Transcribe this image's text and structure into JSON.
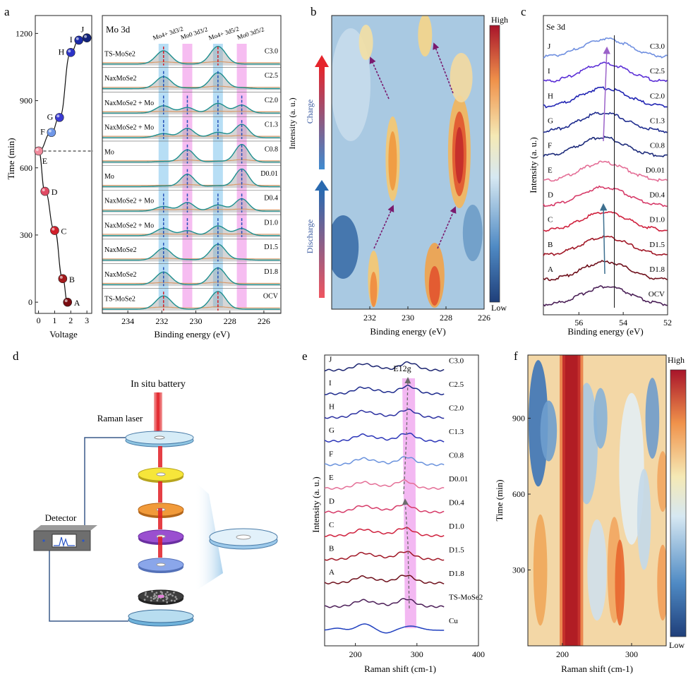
{
  "figure": {
    "panel_letters": [
      "a",
      "b",
      "c",
      "d",
      "e",
      "f"
    ]
  },
  "colors": {
    "curve_points": [
      "#7a0c10",
      "#a31a1c",
      "#d11f2a",
      "#e04a63",
      "#f08a9c",
      "#6f97e8",
      "#3a3ad1",
      "#2b33c7",
      "#1a2aa8",
      "#12237a"
    ],
    "xps_fill": "#a3a3a3",
    "xps_fit": "#1d8f8f",
    "xps_envelope": "#d99a6a",
    "mo4_band": "#9fd3f2",
    "mo0_band": "#f3a7ec",
    "heat_high": "#b2182b",
    "heat_low": "#2c5aa0"
  },
  "chart_data": [
    {
      "id": "a-voltage",
      "type": "line",
      "title": "",
      "xlabel": "Voltage",
      "ylabel": "Time (min)",
      "xlim": [
        -0.2,
        3.3
      ],
      "ylim": [
        -50,
        1280
      ],
      "xticks": [
        0,
        1,
        2,
        3
      ],
      "yticks": [
        0,
        300,
        600,
        900,
        1200
      ],
      "points": [
        {
          "label": "A",
          "v": 1.8,
          "t": 0
        },
        {
          "label": "B",
          "v": 1.5,
          "t": 105
        },
        {
          "label": "C",
          "v": 1.0,
          "t": 320
        },
        {
          "label": "D",
          "v": 0.4,
          "t": 495
        },
        {
          "label": "E",
          "v": 0.01,
          "t": 675
        },
        {
          "label": "F",
          "v": 0.8,
          "t": 758
        },
        {
          "label": "G",
          "v": 1.3,
          "t": 825
        },
        {
          "label": "H",
          "v": 2.0,
          "t": 1115
        },
        {
          "label": "I",
          "v": 2.5,
          "t": 1170
        },
        {
          "label": "J",
          "v": 3.0,
          "t": 1180
        }
      ],
      "dashed_reference_t": 675
    },
    {
      "id": "a-xps",
      "type": "line",
      "title": "Mo 3d",
      "xlabel": "Binding energy (eV)",
      "xlim": [
        235.5,
        225
      ],
      "xticks": [
        234,
        232,
        230,
        228,
        226
      ],
      "header_labels": [
        "Mo4+ 3d3/2",
        "Mo0 3d3/2",
        "Mo4+ 3d5/2",
        "Mo0 3d5/2"
      ],
      "peaks": {
        "mo4_a": 231.9,
        "mo0_a": 230.5,
        "mo4_b": 228.7,
        "mo0_b": 227.3
      },
      "stacks": [
        {
          "left": "TS-MoSe2",
          "right": "C3.0",
          "mo4": 1.0,
          "mo0": 0.0
        },
        {
          "left": "NaxMoSe2",
          "right": "C2.5",
          "mo4": 0.9,
          "mo0": 0.05
        },
        {
          "left": "NaxMoSe2 + Mo",
          "right": "C2.0",
          "mo4": 0.55,
          "mo0": 0.45
        },
        {
          "left": "NaxMoSe2 + Mo",
          "right": "C1.3",
          "mo4": 0.3,
          "mo0": 0.75
        },
        {
          "left": "Mo",
          "right": "C0.8",
          "mo4": 0.05,
          "mo0": 1.0
        },
        {
          "left": "Mo",
          "right": "D0.01",
          "mo4": 0.05,
          "mo0": 1.0
        },
        {
          "left": "NaxMoSe2 + Mo",
          "right": "D0.4",
          "mo4": 0.35,
          "mo0": 0.7
        },
        {
          "left": "NaxMoSe2 + Mo",
          "right": "D1.0",
          "mo4": 0.55,
          "mo0": 0.4
        },
        {
          "left": "NaxMoSe2",
          "right": "D1.5",
          "mo4": 0.9,
          "mo0": 0.05
        },
        {
          "left": "NaxMoSe2",
          "right": "D1.8",
          "mo4": 0.95,
          "mo0": 0.0
        },
        {
          "left": "TS-MoSe2",
          "right": "OCV",
          "mo4": 1.0,
          "mo0": 0.0
        }
      ]
    },
    {
      "id": "b-xps-map",
      "type": "heatmap",
      "xlabel": "Binding energy (eV)",
      "ylabel": "Intensity (a. u.)",
      "xlim": [
        234,
        226
      ],
      "xticks": [
        232,
        230,
        228,
        226
      ],
      "colorbar": {
        "high": "High",
        "low": "Low"
      },
      "arrow_labels": {
        "charge": "Charge",
        "discharge": "Discharge"
      }
    },
    {
      "id": "c-se3d",
      "type": "line",
      "title": "Se 3d",
      "xlabel": "Binding energy (eV)",
      "ylabel": "Intensity (a. u.)",
      "xlim": [
        57.6,
        52
      ],
      "xticks": [
        56,
        54,
        52
      ],
      "vertical_line_ev": 54.4,
      "series": [
        {
          "name": "OCV",
          "label": "",
          "color": "#4a1f56"
        },
        {
          "name": "D1.8",
          "label": "A",
          "color": "#6e0f1b"
        },
        {
          "name": "D1.5",
          "label": "B",
          "color": "#a01625"
        },
        {
          "name": "D1.0",
          "label": "C",
          "color": "#cf1f3c"
        },
        {
          "name": "D0.4",
          "label": "D",
          "color": "#d63a68"
        },
        {
          "name": "D0.01",
          "label": "E",
          "color": "#e46f97"
        },
        {
          "name": "C0.8",
          "label": "F",
          "color": "#1c2a7a"
        },
        {
          "name": "C1.3",
          "label": "G",
          "color": "#1e2b8e"
        },
        {
          "name": "C2.0",
          "label": "H",
          "color": "#2024b3"
        },
        {
          "name": "C2.5",
          "label": "I",
          "color": "#5b2fd6"
        },
        {
          "name": "C3.0",
          "label": "J",
          "color": "#6f8fe0"
        }
      ]
    },
    {
      "id": "e-raman",
      "type": "line",
      "title": "E12g",
      "xlabel": "Raman shift (cm-1)",
      "ylabel": "Intensity (a. u.)",
      "xlim": [
        150,
        400
      ],
      "xticks": [
        200,
        300,
        400
      ],
      "series": [
        {
          "name": "Cu",
          "label": "",
          "color": "#1f3fbf"
        },
        {
          "name": "TS-MoSe2",
          "label": "",
          "color": "#4b1d57"
        },
        {
          "name": "D1.8",
          "label": "A",
          "color": "#6e0f1b"
        },
        {
          "name": "D1.5",
          "label": "B",
          "color": "#a01625"
        },
        {
          "name": "D1.0",
          "label": "C",
          "color": "#cf1f3c"
        },
        {
          "name": "D0.4",
          "label": "D",
          "color": "#d63a68"
        },
        {
          "name": "D0.01",
          "label": "E",
          "color": "#e46f97"
        },
        {
          "name": "C0.8",
          "label": "F",
          "color": "#6a92dd"
        },
        {
          "name": "C1.3",
          "label": "G",
          "color": "#2b35b8"
        },
        {
          "name": "C2.0",
          "label": "H",
          "color": "#2a2fa0"
        },
        {
          "name": "C2.5",
          "label": "I",
          "color": "#1d2a8c"
        },
        {
          "name": "C3.0",
          "label": "J",
          "color": "#1b2470"
        }
      ]
    },
    {
      "id": "f-raman-map",
      "type": "heatmap",
      "xlabel": "Raman shift (cm-1)",
      "ylabel": "Time (min)",
      "xlim": [
        150,
        350
      ],
      "ylim": [
        0,
        1150
      ],
      "xticks": [
        200,
        300
      ],
      "yticks": [
        300,
        600,
        900
      ],
      "colorbar": {
        "high": "High",
        "low": "Low"
      }
    }
  ],
  "schematic": {
    "title": "In situ battery",
    "laser_label": "Raman laser",
    "detector_label": "Detector"
  }
}
